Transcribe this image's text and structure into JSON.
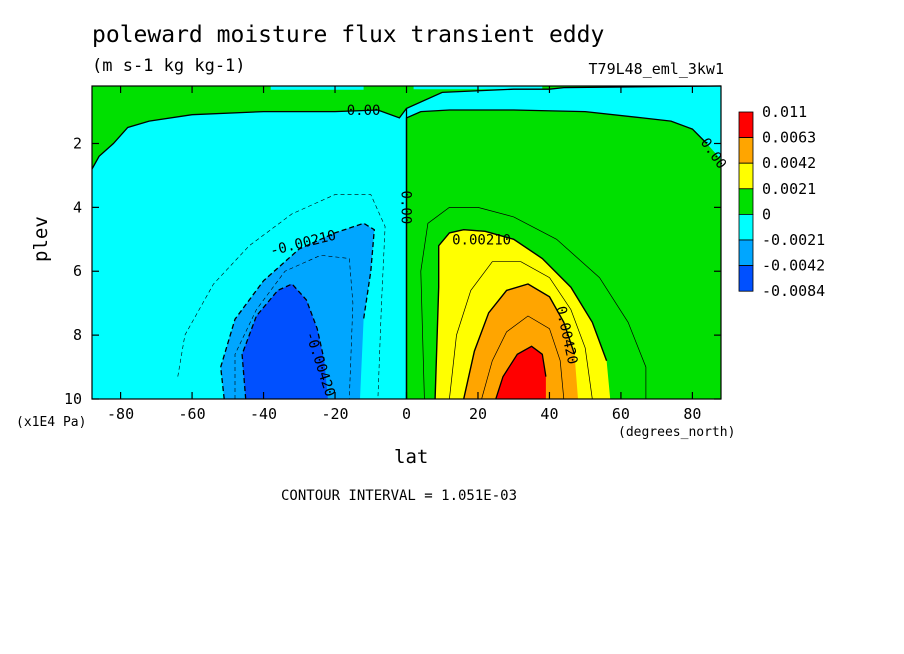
{
  "chart_data": {
    "type": "heatmap",
    "title": "poleward moisture flux transient eddy",
    "subtitle": "(m s-1 kg kg-1)",
    "run_label": "T79L48_eml_3kw1",
    "xlabel": "lat",
    "ylabel": "plev",
    "x_units": "(degrees_north)",
    "y_units": "(x1E4 Pa)",
    "xlim": [
      -88,
      88
    ],
    "ylim": [
      10,
      0.2
    ],
    "x_ticks": [
      -80,
      -60,
      -40,
      -20,
      0,
      20,
      40,
      60,
      80
    ],
    "y_ticks": [
      2,
      4,
      6,
      8,
      10
    ],
    "contour_interval_text": "CONTOUR INTERVAL = 1.051E-03",
    "legend": {
      "placement": "right",
      "labels": [
        "0.011",
        "0.0063",
        "0.0042",
        "0.0021",
        "0",
        "-0.0021",
        "-0.0042",
        "-0.0084"
      ],
      "colors": [
        "#ff0000",
        "#ffa500",
        "#ffff00",
        "#00e000",
        "#00ffff",
        "#00a6ff",
        "#0050ff"
      ]
    },
    "contour_labels": [
      {
        "text": "0.00",
        "lat": -12,
        "plev": 0.95,
        "angle": 0
      },
      {
        "text": "0.00",
        "lat": 86,
        "plev": 2.3,
        "angle": 55
      },
      {
        "text": "0.00",
        "lat": 0,
        "plev": 4.0,
        "angle": 90
      },
      {
        "text": "-0.00210",
        "lat": -29,
        "plev": 5.1,
        "angle": -14
      },
      {
        "text": "0.00210",
        "lat": 21,
        "plev": 5.0,
        "angle": 0
      },
      {
        "text": "-0.00420",
        "lat": -24,
        "plev": 8.9,
        "angle": 72
      },
      {
        "text": "0.00420",
        "lat": 45,
        "plev": 8.0,
        "angle": 78
      }
    ]
  }
}
